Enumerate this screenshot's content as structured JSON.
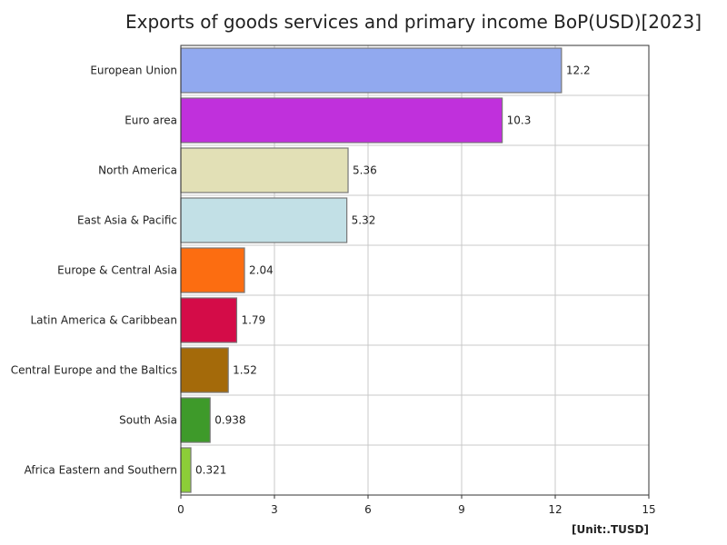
{
  "chart_data": {
    "type": "bar",
    "orientation": "horizontal",
    "title": "Exports of goods services and primary income BoP(USD)[2023]",
    "unit": "[Unit:.TUSD]",
    "categories": [
      "European Union",
      "Euro area",
      "North America",
      "East Asia & Pacific",
      "Europe & Central Asia",
      "Latin America & Caribbean",
      "Central Europe and the Baltics",
      "South Asia",
      "Africa Eastern and Southern"
    ],
    "values": [
      12.2,
      10.3,
      5.36,
      5.32,
      2.04,
      1.79,
      1.52,
      0.938,
      0.321
    ],
    "value_labels": [
      "12.2",
      "10.3",
      "5.36",
      "5.32",
      "2.04",
      "1.79",
      "1.52",
      "0.938",
      "0.321"
    ],
    "colors": [
      "#91a9ef",
      "#c030dc",
      "#e2e0b6",
      "#c2e0e6",
      "#fc6d11",
      "#d40c48",
      "#a46a0a",
      "#3e9a2a",
      "#8ccd38"
    ],
    "xlim": [
      0,
      15
    ],
    "xticks": [
      "0",
      "3",
      "6",
      "9",
      "12",
      "15"
    ],
    "grid": true,
    "legend": "none"
  }
}
